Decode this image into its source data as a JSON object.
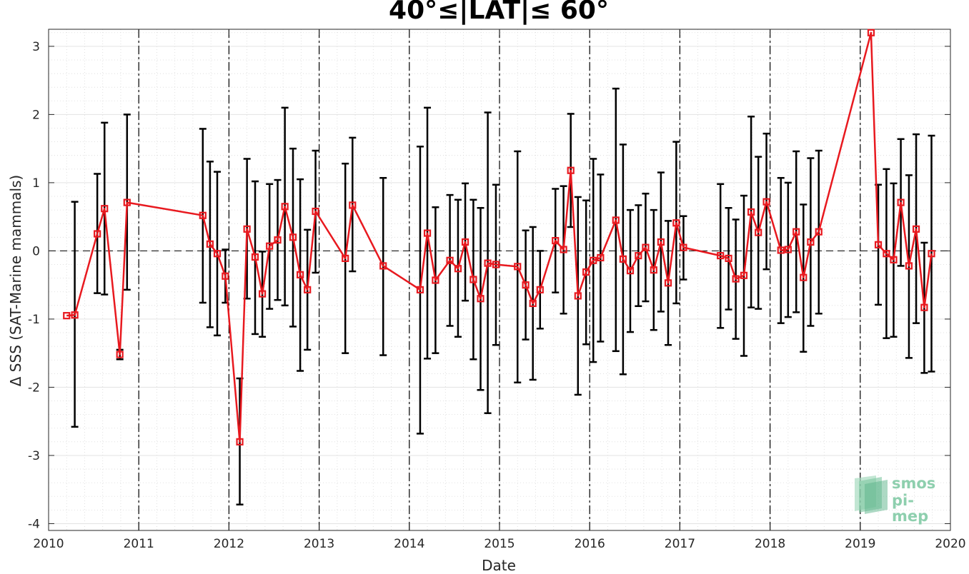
{
  "chart_data": {
    "type": "line",
    "title": "40°≤|LAT|≤ 60°",
    "xlabel": "Date",
    "ylabel": "Δ SSS (SAT-Marine mammals)",
    "xlim": [
      2010,
      2020
    ],
    "ylim": [
      -4.1,
      3.25
    ],
    "x_ticks": [
      2010,
      2011,
      2012,
      2013,
      2014,
      2015,
      2016,
      2017,
      2018,
      2019,
      2020
    ],
    "y_ticks": [
      -4,
      -3,
      -2,
      -1,
      0,
      1,
      2,
      3
    ],
    "year_dividers": [
      2011,
      2012,
      2013,
      2014,
      2015,
      2016,
      2017,
      2018,
      2019
    ],
    "zero_line": 0,
    "grid": true,
    "colors": {
      "line": "#e8191f",
      "errorbar": "#000000"
    },
    "series": [
      {
        "points": [
          {
            "x": 2010.2,
            "y": -0.95
          },
          {
            "x": 2010.29,
            "y": -0.94,
            "lo": -2.58,
            "hi": 0.72
          },
          {
            "x": 2010.54,
            "y": 0.25,
            "lo": -0.62,
            "hi": 1.13
          },
          {
            "x": 2010.62,
            "y": 0.62,
            "lo": -0.64,
            "hi": 1.88
          },
          {
            "x": 2010.79,
            "y": -1.52,
            "lo": -1.59,
            "hi": -1.45
          },
          {
            "x": 2010.87,
            "y": 0.71,
            "lo": -0.57,
            "hi": 2.0
          },
          {
            "x": 2011.71,
            "y": 0.52,
            "lo": -0.76,
            "hi": 1.79
          },
          {
            "x": 2011.79,
            "y": 0.1,
            "lo": -1.12,
            "hi": 1.31
          },
          {
            "x": 2011.87,
            "y": -0.04,
            "lo": -1.24,
            "hi": 1.16
          },
          {
            "x": 2011.96,
            "y": -0.37,
            "lo": -0.76,
            "hi": 0.02
          },
          {
            "x": 2012.12,
            "y": -2.8,
            "lo": -3.72,
            "hi": -1.87
          },
          {
            "x": 2012.2,
            "y": 0.32,
            "lo": -0.7,
            "hi": 1.35
          },
          {
            "x": 2012.29,
            "y": -0.09,
            "lo": -1.22,
            "hi": 1.02
          },
          {
            "x": 2012.37,
            "y": -0.63,
            "lo": -1.26,
            "hi": -0.01
          },
          {
            "x": 2012.45,
            "y": 0.07,
            "lo": -0.85,
            "hi": 0.98
          },
          {
            "x": 2012.54,
            "y": 0.16,
            "lo": -0.72,
            "hi": 1.04
          },
          {
            "x": 2012.62,
            "y": 0.65,
            "lo": -0.8,
            "hi": 2.1
          },
          {
            "x": 2012.71,
            "y": 0.2,
            "lo": -1.11,
            "hi": 1.5
          },
          {
            "x": 2012.79,
            "y": -0.35,
            "lo": -1.76,
            "hi": 1.05
          },
          {
            "x": 2012.87,
            "y": -0.57,
            "lo": -1.45,
            "hi": 0.31
          },
          {
            "x": 2012.96,
            "y": 0.58,
            "lo": -0.32,
            "hi": 1.47
          },
          {
            "x": 2013.29,
            "y": -0.11,
            "lo": -1.5,
            "hi": 1.28
          },
          {
            "x": 2013.37,
            "y": 0.67,
            "lo": -0.3,
            "hi": 1.66
          },
          {
            "x": 2013.71,
            "y": -0.22,
            "lo": -1.53,
            "hi": 1.07
          },
          {
            "x": 2014.12,
            "y": -0.57,
            "lo": -2.68,
            "hi": 1.53
          },
          {
            "x": 2014.2,
            "y": 0.26,
            "lo": -1.58,
            "hi": 2.1
          },
          {
            "x": 2014.29,
            "y": -0.43,
            "lo": -1.5,
            "hi": 0.64
          },
          {
            "x": 2014.45,
            "y": -0.14,
            "lo": -1.1,
            "hi": 0.82
          },
          {
            "x": 2014.54,
            "y": -0.26,
            "lo": -1.26,
            "hi": 0.75
          },
          {
            "x": 2014.62,
            "y": 0.13,
            "lo": -0.73,
            "hi": 0.99
          },
          {
            "x": 2014.71,
            "y": -0.42,
            "lo": -1.59,
            "hi": 0.75
          },
          {
            "x": 2014.79,
            "y": -0.7,
            "lo": -2.04,
            "hi": 0.63
          },
          {
            "x": 2014.87,
            "y": -0.18,
            "lo": -2.38,
            "hi": 2.03
          },
          {
            "x": 2014.96,
            "y": -0.2,
            "lo": -1.38,
            "hi": 0.97
          },
          {
            "x": 2015.2,
            "y": -0.23,
            "lo": -1.93,
            "hi": 1.46
          },
          {
            "x": 2015.29,
            "y": -0.5,
            "lo": -1.3,
            "hi": 0.3
          },
          {
            "x": 2015.37,
            "y": -0.77,
            "lo": -1.89,
            "hi": 0.35
          },
          {
            "x": 2015.45,
            "y": -0.57,
            "lo": -1.14,
            "hi": 0.0
          },
          {
            "x": 2015.62,
            "y": 0.15,
            "lo": -0.61,
            "hi": 0.91
          },
          {
            "x": 2015.71,
            "y": 0.02,
            "lo": -0.92,
            "hi": 0.95
          },
          {
            "x": 2015.79,
            "y": 1.18,
            "lo": 0.35,
            "hi": 2.01
          },
          {
            "x": 2015.87,
            "y": -0.66,
            "lo": -2.11,
            "hi": 0.79
          },
          {
            "x": 2015.96,
            "y": -0.31,
            "lo": -1.37,
            "hi": 0.74
          },
          {
            "x": 2016.04,
            "y": -0.14,
            "lo": -1.63,
            "hi": 1.35
          },
          {
            "x": 2016.12,
            "y": -0.1,
            "lo": -1.33,
            "hi": 1.12
          },
          {
            "x": 2016.29,
            "y": 0.45,
            "lo": -1.47,
            "hi": 2.38
          },
          {
            "x": 2016.37,
            "y": -0.12,
            "lo": -1.81,
            "hi": 1.56
          },
          {
            "x": 2016.45,
            "y": -0.29,
            "lo": -1.19,
            "hi": 0.6
          },
          {
            "x": 2016.54,
            "y": -0.07,
            "lo": -0.81,
            "hi": 0.67
          },
          {
            "x": 2016.62,
            "y": 0.05,
            "lo": -0.74,
            "hi": 0.84
          },
          {
            "x": 2016.71,
            "y": -0.28,
            "lo": -1.16,
            "hi": 0.6
          },
          {
            "x": 2016.79,
            "y": 0.13,
            "lo": -0.89,
            "hi": 1.15
          },
          {
            "x": 2016.87,
            "y": -0.47,
            "lo": -1.38,
            "hi": 0.44
          },
          {
            "x": 2016.96,
            "y": 0.41,
            "lo": -0.77,
            "hi": 1.6
          },
          {
            "x": 2017.04,
            "y": 0.05,
            "lo": -0.42,
            "hi": 0.51
          },
          {
            "x": 2017.45,
            "y": -0.07,
            "lo": -1.13,
            "hi": 0.98
          },
          {
            "x": 2017.54,
            "y": -0.11,
            "lo": -0.86,
            "hi": 0.63
          },
          {
            "x": 2017.62,
            "y": -0.41,
            "lo": -1.29,
            "hi": 0.46
          },
          {
            "x": 2017.71,
            "y": -0.36,
            "lo": -1.54,
            "hi": 0.81
          },
          {
            "x": 2017.79,
            "y": 0.57,
            "lo": -0.83,
            "hi": 1.97
          },
          {
            "x": 2017.87,
            "y": 0.27,
            "lo": -0.85,
            "hi": 1.38
          },
          {
            "x": 2017.96,
            "y": 0.72,
            "lo": -0.27,
            "hi": 1.72
          },
          {
            "x": 2018.12,
            "y": 0.01,
            "lo": -1.06,
            "hi": 1.07
          },
          {
            "x": 2018.2,
            "y": 0.02,
            "lo": -0.97,
            "hi": 1.0
          },
          {
            "x": 2018.29,
            "y": 0.28,
            "lo": -0.9,
            "hi": 1.46
          },
          {
            "x": 2018.37,
            "y": -0.39,
            "lo": -1.48,
            "hi": 0.68
          },
          {
            "x": 2018.45,
            "y": 0.13,
            "lo": -1.1,
            "hi": 1.36
          },
          {
            "x": 2018.54,
            "y": 0.28,
            "lo": -0.92,
            "hi": 1.47
          },
          {
            "x": 2019.12,
            "y": 3.2
          },
          {
            "x": 2019.2,
            "y": 0.09,
            "lo": -0.79,
            "hi": 0.97
          },
          {
            "x": 2019.29,
            "y": -0.04,
            "lo": -1.28,
            "hi": 1.2
          },
          {
            "x": 2019.37,
            "y": -0.13,
            "lo": -1.26,
            "hi": 0.99
          },
          {
            "x": 2019.45,
            "y": 0.71,
            "lo": -0.22,
            "hi": 1.64
          },
          {
            "x": 2019.54,
            "y": -0.22,
            "lo": -1.57,
            "hi": 1.11
          },
          {
            "x": 2019.62,
            "y": 0.32,
            "lo": -1.06,
            "hi": 1.71
          },
          {
            "x": 2019.71,
            "y": -0.83,
            "lo": -1.79,
            "hi": 0.12
          },
          {
            "x": 2019.79,
            "y": -0.04,
            "lo": -1.77,
            "hi": 1.69
          }
        ]
      }
    ]
  },
  "logo": {
    "line1": "smos",
    "line2": "pi-mep"
  }
}
